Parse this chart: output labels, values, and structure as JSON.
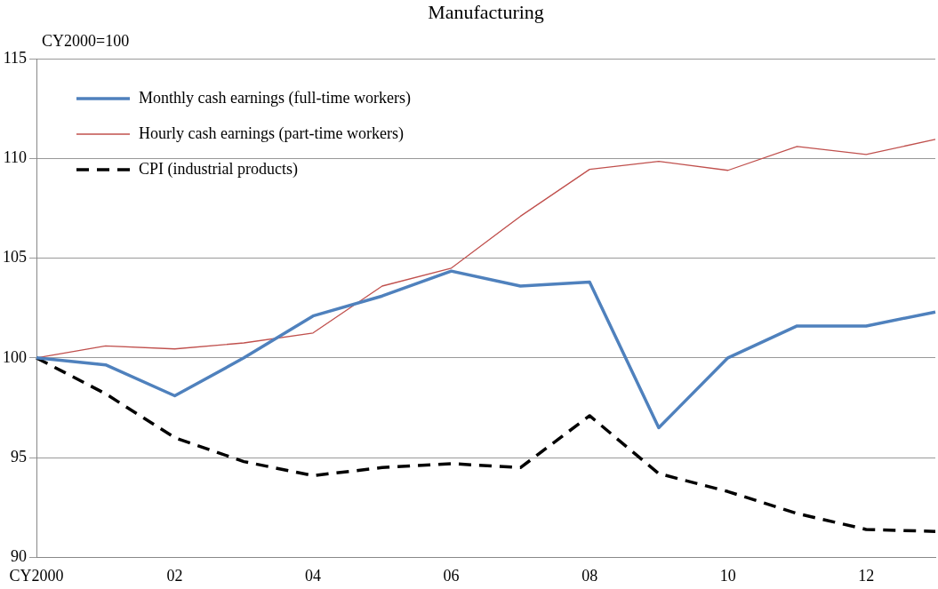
{
  "chart_data": {
    "type": "line",
    "title": "Manufacturing",
    "ylabel": "CY2000=100",
    "categories": [
      "CY2000",
      null,
      "02",
      null,
      "04",
      null,
      "06",
      null,
      "08",
      null,
      "10",
      null,
      "12",
      null
    ],
    "series": [
      {
        "name": "Monthly cash earnings (full-time workers)",
        "color": "#4f81bd",
        "values": [
          100,
          99.65,
          98.1,
          100,
          102.1,
          103.1,
          104.35,
          103.6,
          103.8,
          96.5,
          100,
          101.6,
          101.6,
          102.3
        ],
        "line_style": "solid"
      },
      {
        "name": "Hourly cash earnings (part-time workers)",
        "color": "#c0504d",
        "values": [
          100,
          100.6,
          100.45,
          100.75,
          101.25,
          103.6,
          104.5,
          107.1,
          109.45,
          109.85,
          109.4,
          110.6,
          110.2,
          110.95
        ],
        "line_style": "solid"
      },
      {
        "name": "CPI (industrial products)",
        "color": "#000000",
        "values": [
          100,
          98.2,
          96,
          94.8,
          94.1,
          94.5,
          94.7,
          94.5,
          97.1,
          94.2,
          93.3,
          92.2,
          91.4,
          91.3
        ],
        "line_style": "dashed"
      }
    ],
    "ylim": [
      90,
      115
    ],
    "yticks": [
      90,
      95,
      100,
      105,
      110,
      115
    ],
    "grid": "y",
    "legend": "top left",
    "marker": "none"
  }
}
